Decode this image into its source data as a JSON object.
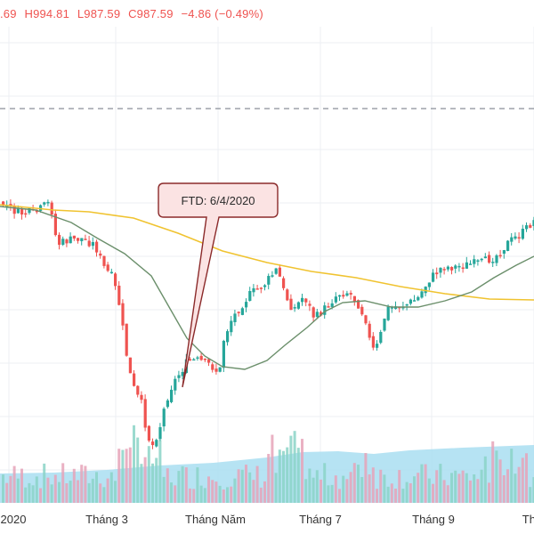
{
  "legend": {
    "open": ".69",
    "high": "H994.81",
    "low": "L987.59",
    "close": "C987.59",
    "change": "−4.86 (−0.49%)"
  },
  "annotation": {
    "text": "FTD: 6/4/2020"
  },
  "colors": {
    "up": "#26a69a",
    "down": "#ef5350",
    "ma_long": "#f0c330",
    "ma_short": "#6b8f6b",
    "volume_area": "#aee0f2",
    "callout_fill": "#fbe3e3",
    "callout_stroke": "#8b2a2a",
    "gridline": "#eceff3",
    "dashed_line": "#8a8f99"
  },
  "chart_data": {
    "type": "candlestick",
    "x_tick_labels": [
      "2020",
      "Tháng 3",
      "Tháng Năm",
      "Tháng 7",
      "Tháng 9",
      "Thá"
    ],
    "series": [
      {
        "kind": "candles",
        "approx_closes": [
          1050,
          1040,
          1030,
          1060,
          960,
          920,
          890,
          820,
          700,
          640,
          680,
          720,
          800,
          860,
          930,
          890,
          950,
          980,
          1000,
          960,
          930,
          900,
          960,
          1030,
          1080,
          1110,
          1150
        ]
      },
      {
        "kind": "moving_average_long",
        "approx": [
          1090,
          1085,
          1080,
          1075,
          1070,
          1065,
          1055,
          1045,
          1035,
          1025,
          1015,
          1010,
          1005,
          1000,
          995,
          992,
          990
        ]
      },
      {
        "kind": "moving_average_short",
        "approx": [
          1085,
          1060,
          1030,
          980,
          910,
          860,
          840,
          850,
          900,
          930,
          960,
          970,
          980,
          990,
          1020,
          1070
        ]
      },
      {
        "kind": "volume"
      }
    ],
    "dashed_reference_line": true,
    "grid": true
  }
}
